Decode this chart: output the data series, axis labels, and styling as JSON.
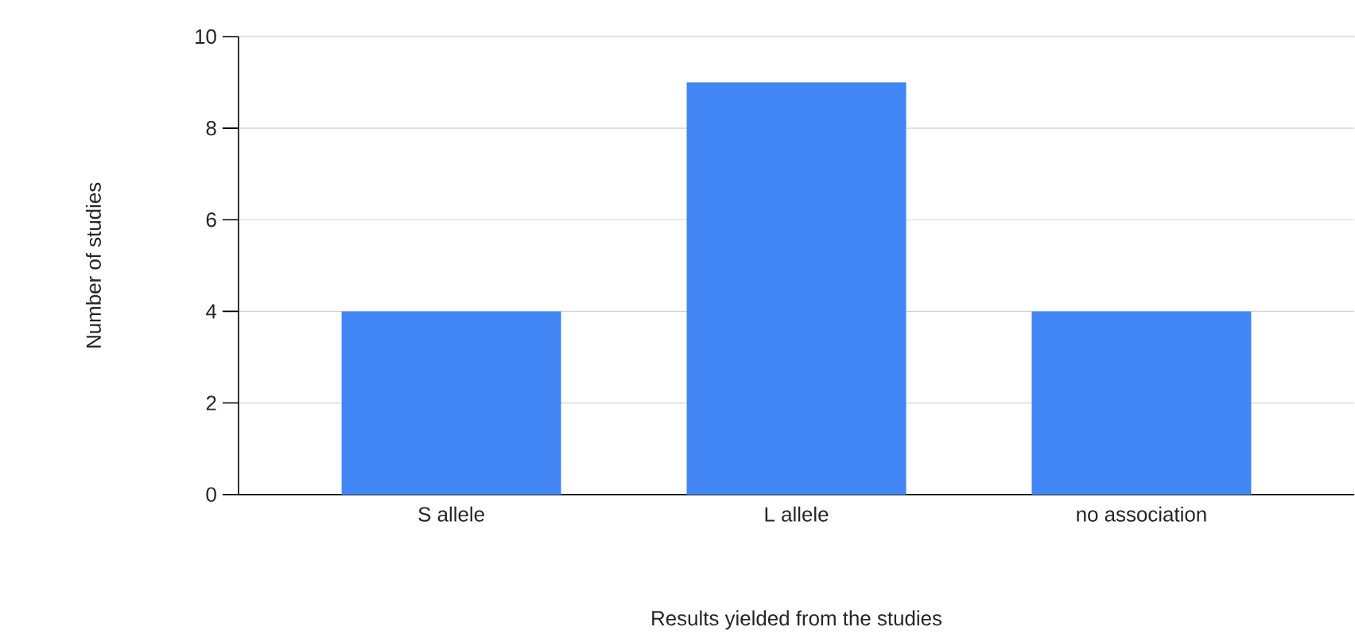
{
  "chart_data": {
    "type": "bar",
    "xlabel": "Results yielded from the studies",
    "ylabel": "Number of studies",
    "categories": [
      "S allele",
      "L allele",
      "no association"
    ],
    "values": [
      4,
      9,
      4
    ],
    "color": "#4285f4",
    "ylim": [
      0,
      10
    ],
    "yticks": [
      0,
      2,
      4,
      6,
      8,
      10
    ],
    "grid": "y"
  }
}
